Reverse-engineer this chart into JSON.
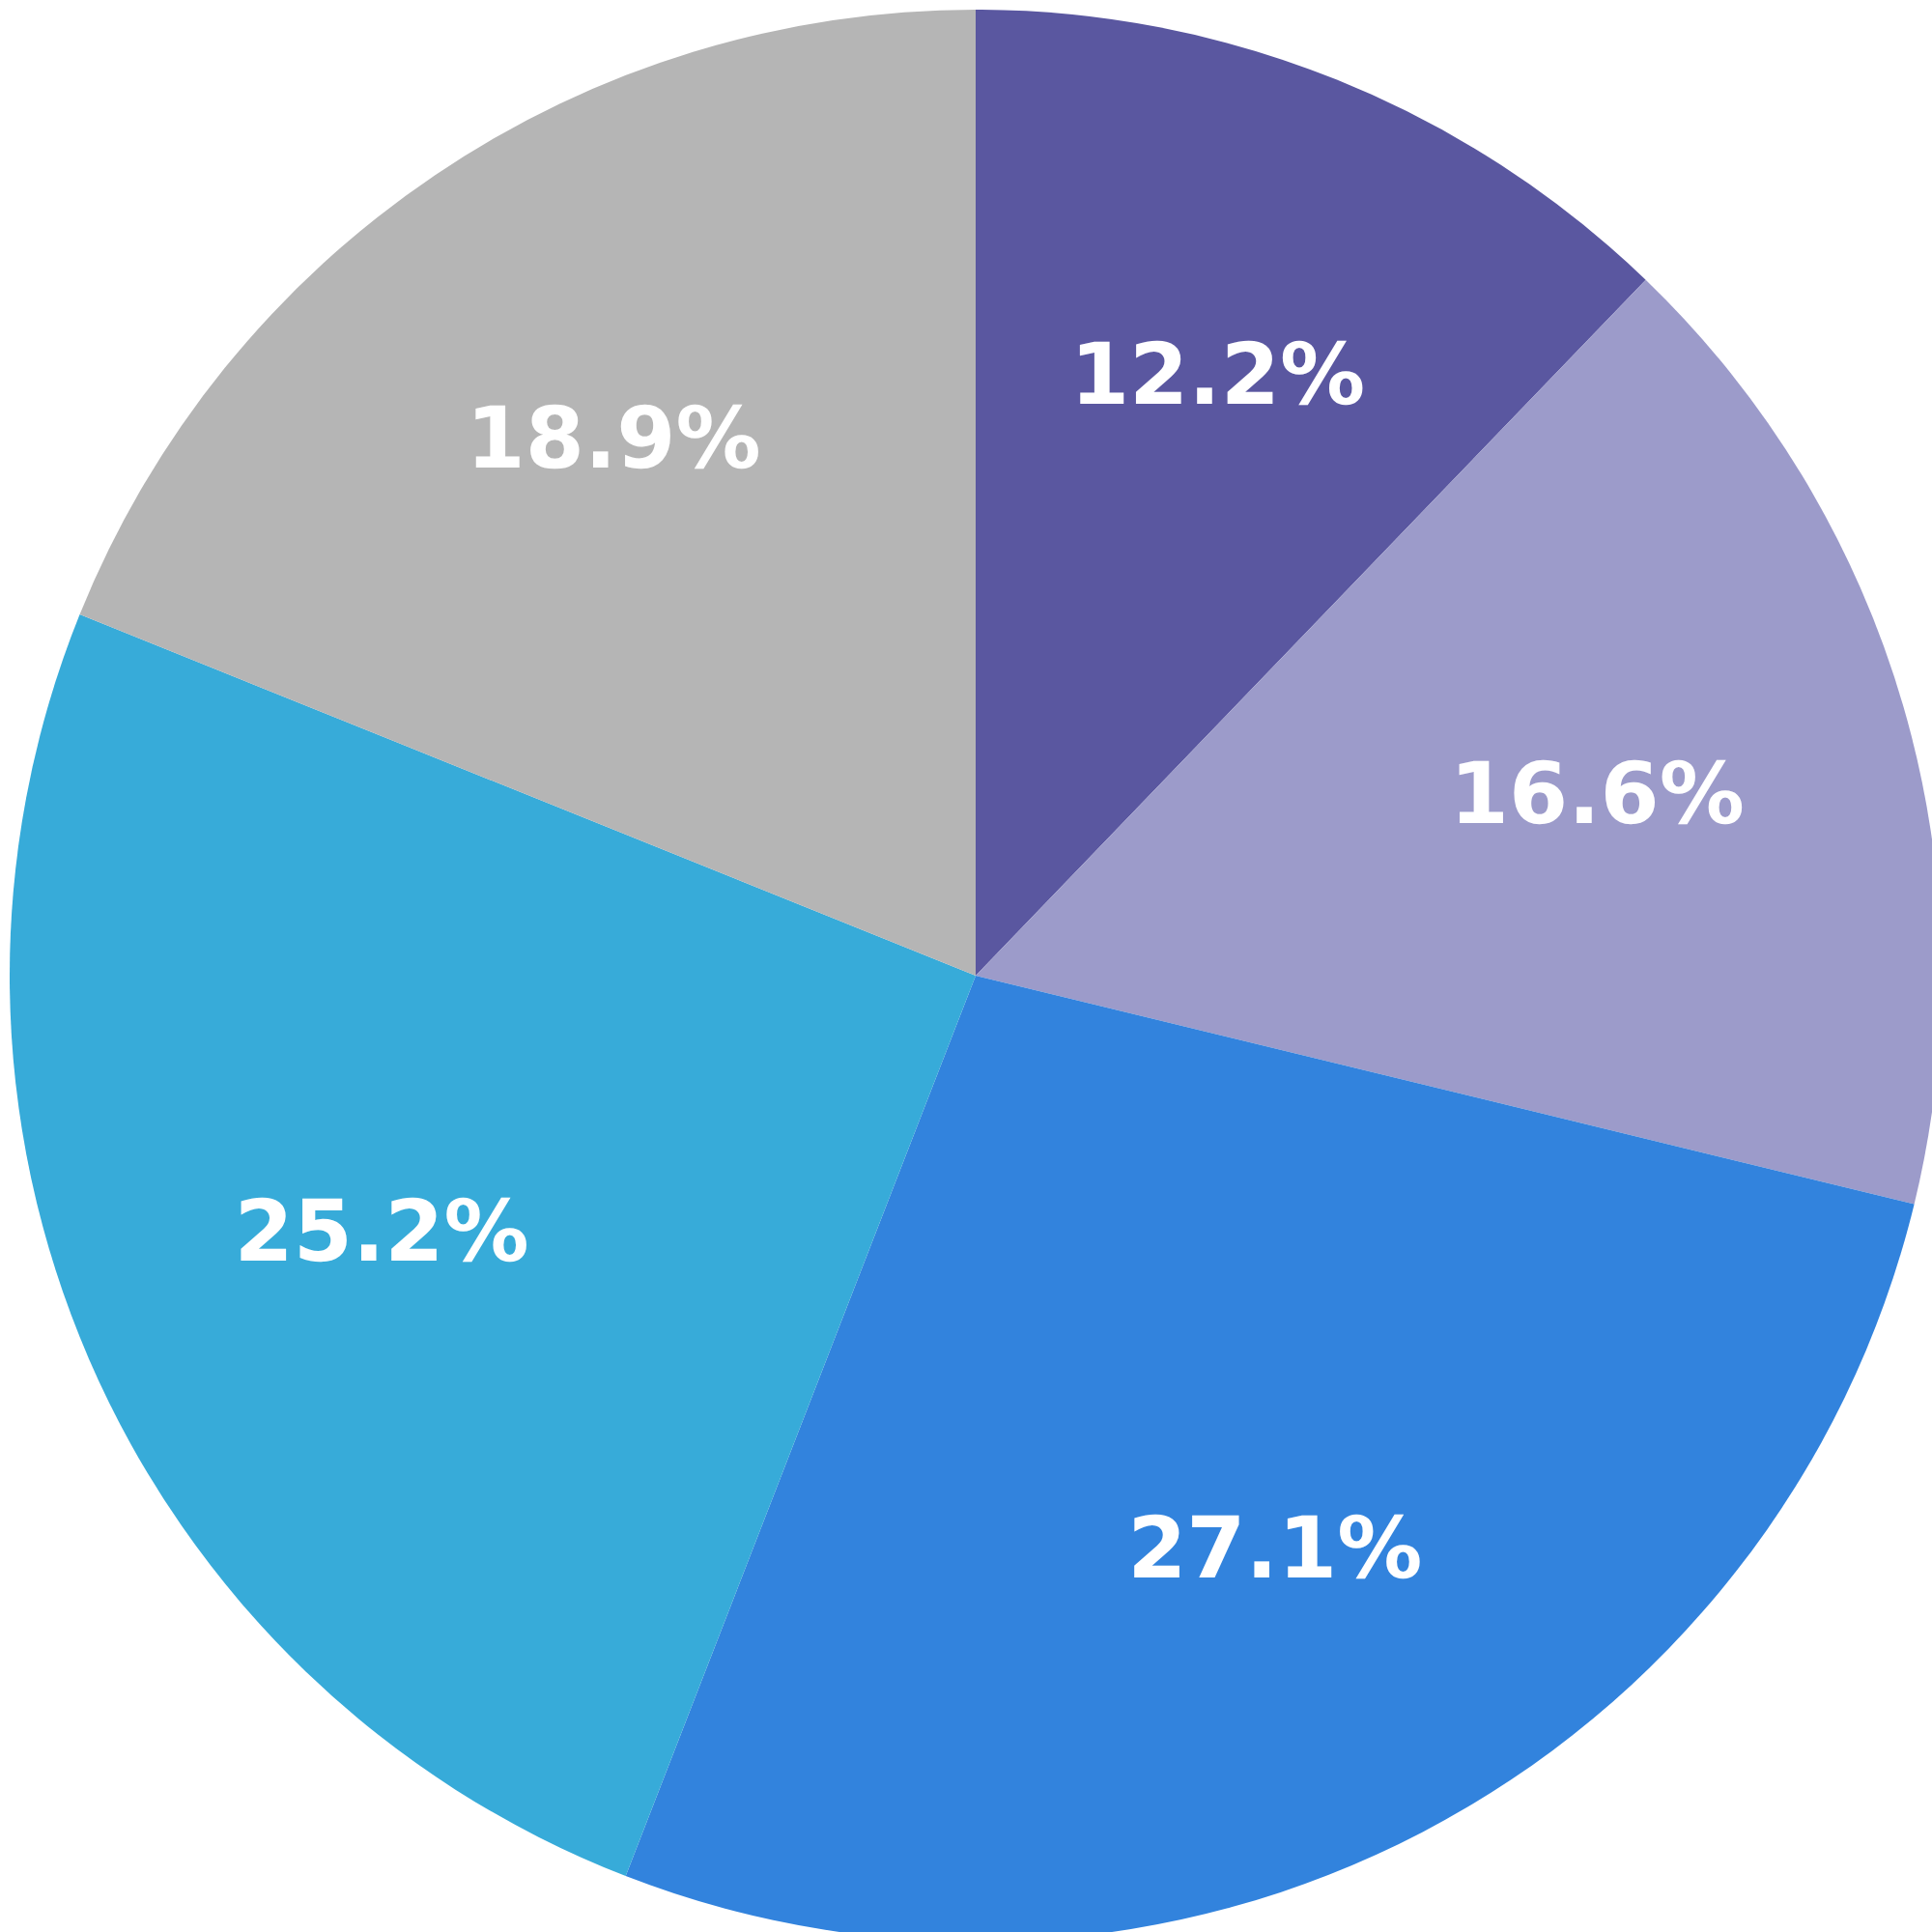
{
  "chart_data": {
    "type": "pie",
    "categories": [
      null,
      null,
      null,
      null,
      null
    ],
    "values": [
      12.2,
      16.6,
      27.1,
      25.2,
      18.9
    ],
    "colors": [
      "#5a57a0",
      "#9c9bca",
      "#3283dd",
      "#37abd9",
      "#b5b5b5"
    ],
    "value_labels": [
      "12.2%",
      "16.6%",
      "27.1%",
      "25.2%",
      "18.9%"
    ]
  }
}
